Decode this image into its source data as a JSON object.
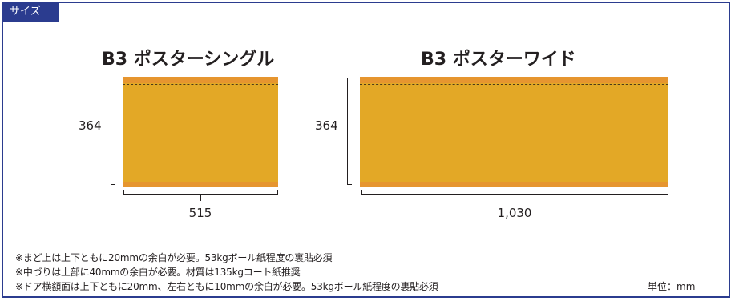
{
  "section": {
    "tab_label": "サイズ"
  },
  "colors": {
    "frame": "#2b3c8f",
    "poster_fill": "#e3a826",
    "poster_band": "#e6952f"
  },
  "posters": [
    {
      "title": "B3 ポスターシングル",
      "height_label": "364",
      "width_label": "515"
    },
    {
      "title": "B3 ポスターワイド",
      "height_label": "364",
      "width_label": "1,030"
    }
  ],
  "notes": [
    "※まど上は上下ともに20mmの余白が必要。53kgボール紙程度の裏貼必須",
    "※中づりは上部に40mmの余白が必要。材質は135kgコート紙推奨",
    "※ドア横額面は上下ともに20mm、左右ともに10mmの余白が必要。53kgボール紙程度の裏貼必須"
  ],
  "unit_label": "単位：mm"
}
